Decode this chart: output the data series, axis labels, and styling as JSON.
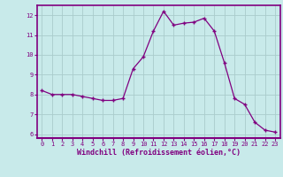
{
  "x": [
    0,
    1,
    2,
    3,
    4,
    5,
    6,
    7,
    8,
    9,
    10,
    11,
    12,
    13,
    14,
    15,
    16,
    17,
    18,
    19,
    20,
    21,
    22,
    23
  ],
  "y": [
    8.2,
    8.0,
    8.0,
    8.0,
    7.9,
    7.8,
    7.7,
    7.7,
    7.8,
    9.3,
    9.9,
    11.2,
    12.2,
    11.5,
    11.6,
    11.65,
    11.85,
    11.2,
    9.6,
    7.8,
    7.5,
    6.6,
    6.2,
    6.1
  ],
  "line_color": "#800080",
  "marker": "+",
  "marker_size": 3,
  "marker_lw": 1.0,
  "bg_color": "#c8eaea",
  "grid_color": "#aacccc",
  "xlabel": "Windchill (Refroidissement éolien,°C)",
  "xlim": [
    -0.5,
    23.5
  ],
  "ylim": [
    5.8,
    12.5
  ],
  "yticks": [
    6,
    7,
    8,
    9,
    10,
    11,
    12
  ],
  "xticks": [
    0,
    1,
    2,
    3,
    4,
    5,
    6,
    7,
    8,
    9,
    10,
    11,
    12,
    13,
    14,
    15,
    16,
    17,
    18,
    19,
    20,
    21,
    22,
    23
  ],
  "label_color": "#800080",
  "spine_color": "#800080",
  "tick_fontsize": 5.0,
  "xlabel_fontsize": 6.0,
  "line_width": 0.9
}
